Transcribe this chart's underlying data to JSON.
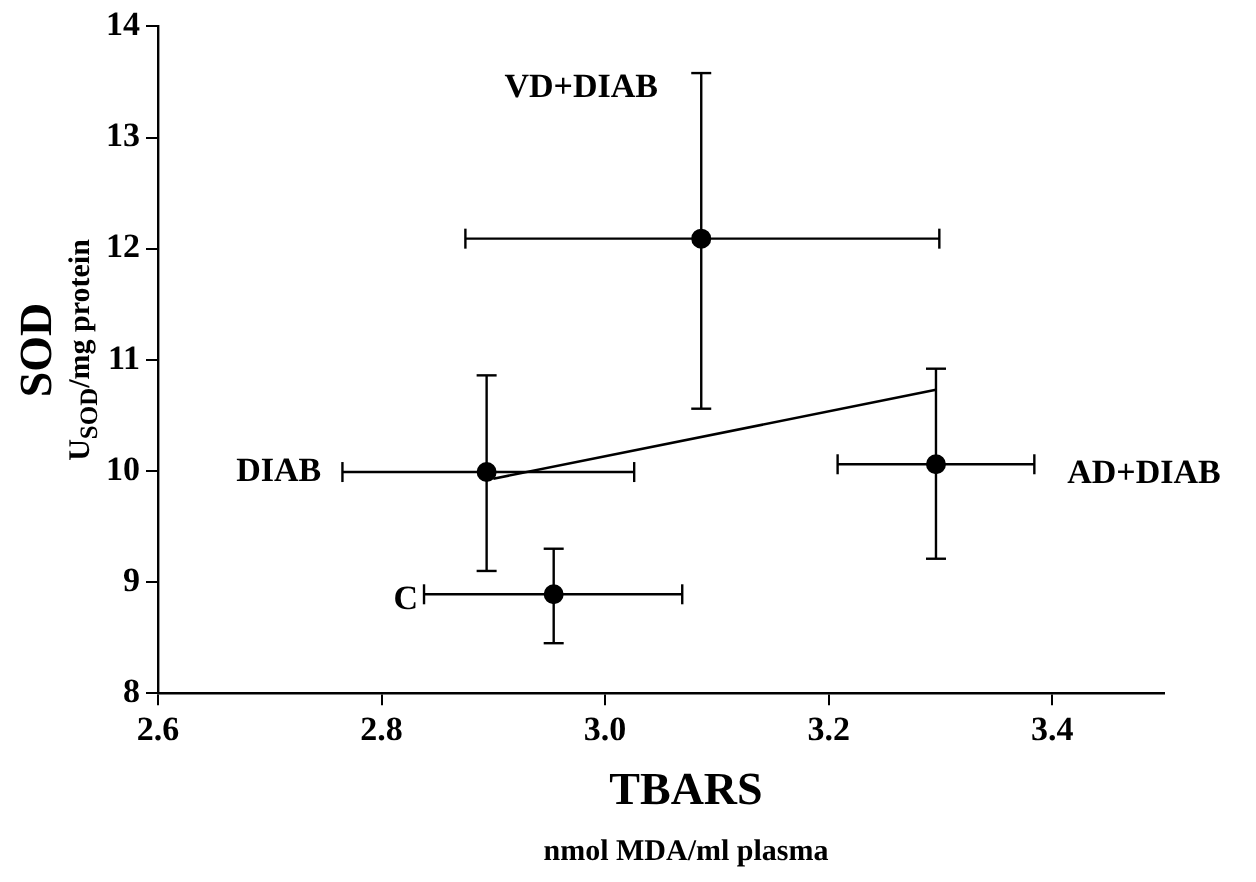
{
  "chart_data": {
    "type": "scatter",
    "xlabel": "TBARS\nnmol MDA/ml plasma",
    "ylabel": "SOD\nU$_{SOD}$/mg protein",
    "xlim": [
      2.6,
      3.5
    ],
    "xticks": [
      {
        "value": 2.6,
        "label": "2.6"
      },
      {
        "value": 2.8,
        "label": "2.8"
      },
      {
        "value": 3.0,
        "label": "3.0"
      },
      {
        "value": 3.2,
        "label": "3.2"
      },
      {
        "value": 3.4,
        "label": "3.4"
      }
    ],
    "ylim": [
      8,
      14
    ],
    "yticks": [
      8,
      9,
      10,
      11,
      12,
      13,
      14
    ],
    "grid": false,
    "legend": false,
    "series": [
      {
        "marker": "circle",
        "color": "#000000",
        "x": [
          2.894,
          2.954,
          3.086,
          3.296
        ],
        "values": [
          9.99,
          8.89,
          12.09,
          10.06
        ],
        "errors": [
          [
            9.1,
            10.86
          ],
          [
            8.45,
            9.3
          ],
          [
            10.56,
            13.58
          ],
          [
            9.21,
            10.92
          ]
        ],
        "xerrors": [
          [
            2.765,
            3.026
          ],
          [
            2.838,
            3.069
          ],
          [
            2.875,
            3.299
          ],
          [
            3.208,
            3.384
          ]
        ]
      },
      {
        "type": "line",
        "color": "#000000",
        "x": [
          2.9,
          3.296
        ],
        "values": [
          9.93,
          10.73
        ]
      }
    ],
    "annotations": [
      "DIAB",
      "C",
      "VD+DIAB",
      "AD+DIAB"
    ]
  }
}
